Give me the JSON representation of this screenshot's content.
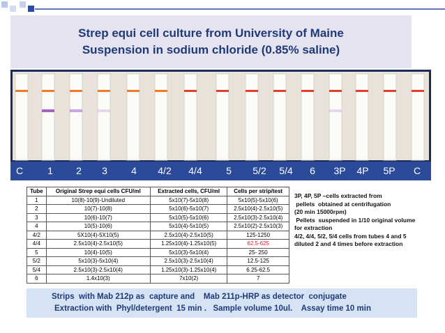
{
  "header": {
    "title_lines": [
      "Strep equi cell culture from University of Maine",
      "Suspension in sodium chloride (0.85% saline)"
    ]
  },
  "strip_labels": [
    "C",
    "1",
    "2",
    "3",
    "4",
    "4/2",
    "4/4",
    "5",
    "5/2",
    "5/4",
    "6",
    "3P",
    "4P",
    "5P",
    "C"
  ],
  "table": {
    "header": [
      "Tube",
      "Original Strep equi cells CFU/ml",
      "Extracted cells, CFU/ml",
      "Cells per strip/test"
    ],
    "rows": [
      [
        "1",
        "10(8)-10(9)-Undiluted",
        "5x10(7)-5x10(8)",
        "5x10(5)-5x10(6)"
      ],
      [
        "2",
        "10(7)-10(8)",
        "5x10(6)-5x10(7)",
        "2.5x10(4)-2.5x10(5)"
      ],
      [
        "3",
        "10(6)-10(7)",
        "5x10(5)-5x10(6)",
        "2.5x10(3)-2.5x10(4)"
      ],
      [
        "4",
        "10(5)-10(6)",
        "5x10(4)-5x10(5)",
        "2.5x10(2)-2.5x10(3)"
      ],
      [
        "4/2",
        "5X10(4)-5X10(5)",
        "2.5x10(4)-2.5x10(5)",
        "125-1250"
      ],
      [
        "4/4",
        "2.5x10(4)-2.5x10(5)",
        "1.25x10(4)-1.25x10(5)",
        "62.5-625"
      ],
      [
        "5",
        "10(4)-10(5)",
        "5x10(3)-5x10(4)",
        "25- 250"
      ],
      [
        "5/2",
        "5x10(3)-5x10(4)",
        "2.5x10(3)-2.5x10(4)",
        "12.5-125"
      ],
      [
        "5/4",
        "2.5x10(3)-2.5x10(4)",
        "1.25x10(3)-1.25x10(4)",
        "6.25-62.5"
      ],
      [
        "6",
        "1.4x10(3)",
        "7x10(2)",
        "7"
      ]
    ]
  },
  "notes": [
    "3P, 4P, 5P –cells extracted from",
    " pellets  obtained at centrifugation",
    "(20 min 15000rpm)",
    " Pellets  suspended in 1/10 original volume",
    "for extraction",
    "4/2, 4/4, 5/2, 5/4 cells from tubes 4 and 5",
    "diluted 2 and 4 times before extraction"
  ],
  "footer": {
    "lines": [
      "Strips  with Mab 212p as  capture and    Mab 211p-HRP as detector  conjugate",
      "Extraction with  Phyl/detergent  15 min .   Sample volume 10ul.    Assay time 10 min"
    ]
  }
}
